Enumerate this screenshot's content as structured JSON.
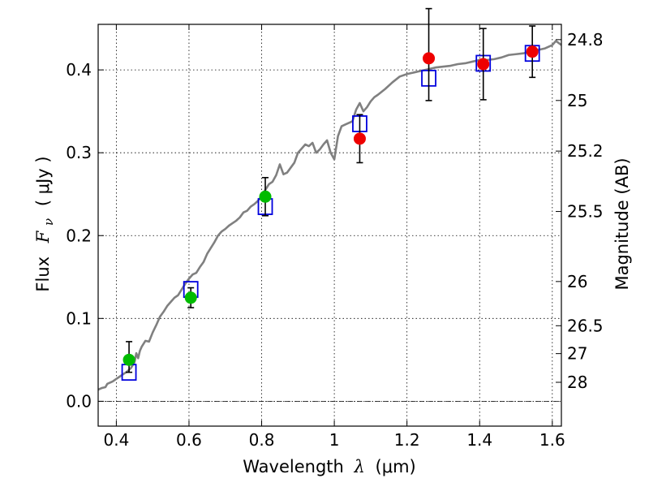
{
  "chart_data": {
    "type": "scatter",
    "xlabel": {
      "prefix": "Wavelength",
      "symbol": "λ",
      "units": "(μm)"
    },
    "ylabel": {
      "prefix": "Flux",
      "symbol": "F",
      "sub": "ν",
      "units": "( μJy )"
    },
    "ylabel_right": "Magnitude (AB)",
    "xlim": [
      0.35,
      1.625
    ],
    "ylim": [
      -0.03,
      0.455
    ],
    "x_ticks": [
      {
        "value": 0.4,
        "label": "0.4"
      },
      {
        "value": 0.6,
        "label": "0.6"
      },
      {
        "value": 0.8,
        "label": "0.8"
      },
      {
        "value": 1.0,
        "label": "1"
      },
      {
        "value": 1.2,
        "label": "1.2"
      },
      {
        "value": 1.4,
        "label": "1.4"
      },
      {
        "value": 1.6,
        "label": "1.6"
      }
    ],
    "y_ticks": [
      {
        "value": 0.0,
        "label": "0.0"
      },
      {
        "value": 0.1,
        "label": "0.1"
      },
      {
        "value": 0.2,
        "label": "0.2"
      },
      {
        "value": 0.3,
        "label": "0.3"
      },
      {
        "value": 0.4,
        "label": "0.4"
      }
    ],
    "mag_ticks": [
      {
        "mag": 24.8,
        "label": "24.8"
      },
      {
        "mag": 25,
        "label": "25"
      },
      {
        "mag": 25.2,
        "label": "25.2"
      },
      {
        "mag": 25.5,
        "label": "25.5"
      },
      {
        "mag": 26,
        "label": "26"
      },
      {
        "mag": 26.5,
        "label": "26.5"
      },
      {
        "mag": 27,
        "label": "27"
      },
      {
        "mag": 28,
        "label": "28"
      }
    ],
    "grid": true,
    "colors": {
      "model": "#808080",
      "green": "#00bb00",
      "red": "#ee0000",
      "box": "#0000dd",
      "error": "#000000",
      "zero": "#000000"
    },
    "model_sed": {
      "x": [
        0.35,
        0.36,
        0.37,
        0.375,
        0.38,
        0.39,
        0.4,
        0.41,
        0.42,
        0.43,
        0.44,
        0.45,
        0.455,
        0.46,
        0.465,
        0.47,
        0.48,
        0.49,
        0.5,
        0.51,
        0.52,
        0.53,
        0.54,
        0.55,
        0.56,
        0.57,
        0.58,
        0.59,
        0.6,
        0.61,
        0.62,
        0.63,
        0.64,
        0.65,
        0.66,
        0.67,
        0.68,
        0.69,
        0.7,
        0.71,
        0.72,
        0.73,
        0.74,
        0.75,
        0.76,
        0.77,
        0.78,
        0.79,
        0.8,
        0.81,
        0.82,
        0.83,
        0.84,
        0.85,
        0.86,
        0.87,
        0.88,
        0.89,
        0.9,
        0.91,
        0.92,
        0.93,
        0.94,
        0.95,
        0.96,
        0.97,
        0.98,
        0.99,
        1.0,
        1.01,
        1.02,
        1.03,
        1.04,
        1.05,
        1.06,
        1.07,
        1.08,
        1.09,
        1.1,
        1.11,
        1.12,
        1.14,
        1.16,
        1.18,
        1.2,
        1.22,
        1.24,
        1.26,
        1.28,
        1.3,
        1.32,
        1.34,
        1.36,
        1.38,
        1.4,
        1.42,
        1.44,
        1.46,
        1.48,
        1.5,
        1.52,
        1.54,
        1.56,
        1.58,
        1.6,
        1.61,
        1.625
      ],
      "y": [
        0.014,
        0.016,
        0.017,
        0.021,
        0.022,
        0.024,
        0.027,
        0.03,
        0.033,
        0.036,
        0.04,
        0.047,
        0.058,
        0.052,
        0.061,
        0.066,
        0.073,
        0.072,
        0.083,
        0.092,
        0.102,
        0.108,
        0.115,
        0.12,
        0.125,
        0.128,
        0.135,
        0.142,
        0.148,
        0.153,
        0.155,
        0.162,
        0.168,
        0.178,
        0.185,
        0.192,
        0.2,
        0.205,
        0.208,
        0.212,
        0.215,
        0.218,
        0.222,
        0.228,
        0.23,
        0.235,
        0.238,
        0.242,
        0.248,
        0.255,
        0.262,
        0.265,
        0.273,
        0.286,
        0.274,
        0.276,
        0.282,
        0.288,
        0.3,
        0.305,
        0.31,
        0.308,
        0.312,
        0.3,
        0.304,
        0.31,
        0.315,
        0.3,
        0.292,
        0.32,
        0.332,
        0.334,
        0.336,
        0.338,
        0.352,
        0.36,
        0.35,
        0.355,
        0.362,
        0.367,
        0.37,
        0.377,
        0.385,
        0.392,
        0.395,
        0.397,
        0.399,
        0.401,
        0.403,
        0.404,
        0.405,
        0.407,
        0.408,
        0.41,
        0.412,
        0.412,
        0.413,
        0.415,
        0.418,
        0.419,
        0.42,
        0.422,
        0.424,
        0.426,
        0.43,
        0.435,
        0.43
      ]
    },
    "boxes": [
      {
        "x": 0.435,
        "y": 0.035
      },
      {
        "x": 0.605,
        "y": 0.135
      },
      {
        "x": 0.81,
        "y": 0.235
      },
      {
        "x": 1.07,
        "y": 0.335
      },
      {
        "x": 1.26,
        "y": 0.39
      },
      {
        "x": 1.41,
        "y": 0.408
      },
      {
        "x": 1.545,
        "y": 0.42
      }
    ],
    "green_points": [
      {
        "x": 0.435,
        "y": 0.05,
        "err_lo": 0.015,
        "err_hi": 0.022
      },
      {
        "x": 0.605,
        "y": 0.125,
        "err_lo": 0.012,
        "err_hi": 0.012
      },
      {
        "x": 0.81,
        "y": 0.247,
        "err_lo": 0.023,
        "err_hi": 0.023
      }
    ],
    "red_points": [
      {
        "x": 1.07,
        "y": 0.317,
        "err_lo": 0.029,
        "err_hi": 0.029
      },
      {
        "x": 1.26,
        "y": 0.414,
        "err_lo": 0.051,
        "err_hi": 0.06
      },
      {
        "x": 1.41,
        "y": 0.407,
        "err_lo": 0.043,
        "err_hi": 0.043
      },
      {
        "x": 1.545,
        "y": 0.422,
        "err_lo": 0.031,
        "err_hi": 0.031
      }
    ]
  }
}
